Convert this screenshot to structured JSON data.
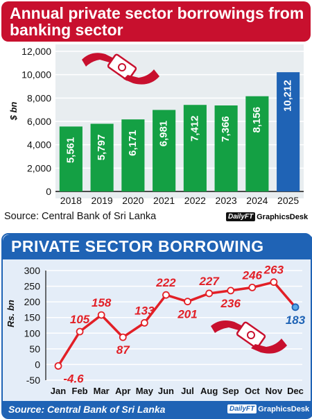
{
  "top": {
    "title": "Annual private sector borrowings from banking sector",
    "source": "Source: Central Bank of Sri Lanka",
    "badge_left": "DailyFT",
    "badge_right": "GraphicsDesk"
  },
  "bottom": {
    "title": "PRIVATE SECTOR BORROWING",
    "source": "Source: Central Bank of Sri Lanka",
    "badge_left": "DailyFT",
    "badge_right": "GraphicsDesk"
  },
  "colors": {
    "red": "#c8102e",
    "green": "#14a044",
    "blue": "#1f63b5",
    "line": "#e21f26"
  },
  "icons": [
    "hand-money-icon",
    "hand-money-icon"
  ],
  "chart_data": [
    {
      "type": "bar",
      "title": "Annual private sector borrowings from banking sector",
      "ylabel": "$ bn",
      "ylim": [
        0,
        12000
      ],
      "yticks": [
        "0",
        "2,000",
        "4,000",
        "6,000",
        "8,000",
        "10,000",
        "12,000"
      ],
      "categories": [
        "2018",
        "2019",
        "2020",
        "2021",
        "2022",
        "2023",
        "2024",
        "2025"
      ],
      "values": [
        5561,
        5797,
        6171,
        6981,
        7412,
        7366,
        8156,
        10212
      ],
      "labels": [
        "5,561",
        "5,797",
        "6,171",
        "6,981",
        "7,412",
        "7,366",
        "8,156",
        "10,212"
      ],
      "bar_colors": [
        "#14a044",
        "#14a044",
        "#14a044",
        "#14a044",
        "#14a044",
        "#14a044",
        "#14a044",
        "#1f63b5"
      ],
      "grid": true
    },
    {
      "type": "line",
      "title": "PRIVATE SECTOR BORROWING",
      "ylabel": "Rs. bn",
      "ylim": [
        -50,
        300
      ],
      "yticks": [
        "-50",
        "0",
        "50",
        "100",
        "150",
        "200",
        "250",
        "300"
      ],
      "categories": [
        "Jan",
        "Feb",
        "Mar",
        "Apr",
        "May",
        "Jun",
        "Jul",
        "Aug",
        "Sep",
        "Oct",
        "Nov",
        "Dec"
      ],
      "values": [
        -4.6,
        105,
        158,
        87,
        133,
        222,
        201,
        227,
        236,
        246,
        263,
        183
      ],
      "labels": [
        "-4.6",
        "105",
        "158",
        "87",
        "133",
        "222",
        "201",
        "227",
        "236",
        "246",
        "263",
        "183"
      ],
      "grid": true
    }
  ]
}
